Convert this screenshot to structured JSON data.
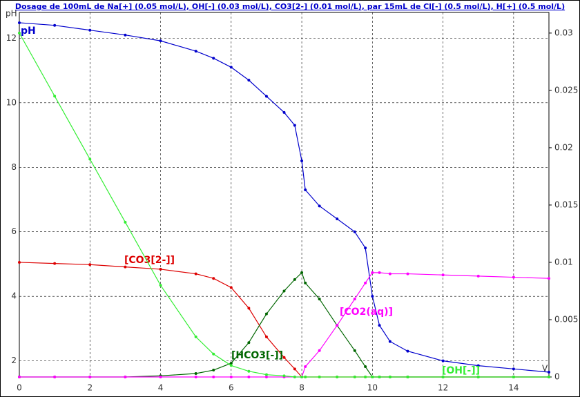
{
  "chart_data": {
    "type": "line",
    "title": "Dosage de 100mL de Na[+] (0.05 mol/L), OH[-] (0.03 mol/L), CO3[2-] (0.01 mol/L),  par 15mL  de Cl[-] (0.5 mol/L), H[+] (0.5 mol/L)",
    "y_label": "pH",
    "x_label": "V",
    "x": [
      0,
      1,
      2,
      3,
      4,
      5,
      5.5,
      6,
      6.5,
      7,
      7.5,
      7.8,
      8,
      8.1,
      8.5,
      9,
      9.5,
      9.8,
      10,
      10.2,
      10.5,
      11,
      12,
      13,
      14,
      15
    ],
    "series": [
      {
        "name": "pH",
        "color": "#0000cc",
        "values": [
          12.48,
          12.4,
          12.25,
          12.1,
          11.92,
          11.6,
          11.38,
          11.1,
          10.7,
          10.2,
          9.7,
          9.3,
          8.2,
          7.3,
          6.8,
          6.4,
          6.0,
          5.5,
          4.0,
          3.1,
          2.6,
          2.3,
          2.0,
          1.85,
          1.75,
          1.65
        ]
      },
      {
        "name": "[CO3[2-]]",
        "color": "#dd0000",
        "axis": "y2",
        "values": [
          0.01,
          0.0099,
          0.0098,
          0.0096,
          0.0094,
          0.009,
          0.0086,
          0.0078,
          0.006,
          0.0035,
          0.0017,
          0.0007,
          0,
          0,
          0,
          0,
          0,
          0,
          0,
          0,
          0,
          0,
          0,
          0,
          0,
          0
        ]
      },
      {
        "name": "[HCO3[-]]",
        "color": "#006600",
        "axis": "y2",
        "values": [
          0,
          0,
          0,
          0,
          0.0001,
          0.0003,
          0.0006,
          0.0012,
          0.003,
          0.0055,
          0.0075,
          0.0085,
          0.0091,
          0.0082,
          0.0068,
          0.0045,
          0.0023,
          0.0009,
          0,
          0,
          0,
          0,
          0,
          0,
          0,
          0
        ]
      },
      {
        "name": "[CO2(aq)]",
        "color": "#ff00ff",
        "axis": "y2",
        "values": [
          0,
          0,
          0,
          0,
          0,
          0,
          0,
          0,
          0,
          0,
          0,
          0,
          0,
          0.0009,
          0.0023,
          0.0045,
          0.0068,
          0.0082,
          0.0091,
          0.0091,
          0.009,
          0.009,
          0.0089,
          0.0088,
          0.0087,
          0.0086
        ]
      },
      {
        "name": "[OH[-]]",
        "color": "#33ee33",
        "axis": "y2",
        "values": [
          0.03,
          0.0245,
          0.019,
          0.0135,
          0.008,
          0.0035,
          0.002,
          0.001,
          0.0005,
          0.0002,
          0.0001,
          0,
          0,
          0,
          0,
          0,
          0,
          0,
          0,
          0,
          0,
          0,
          0,
          0,
          0,
          0
        ]
      }
    ],
    "xlim": [
      0,
      15
    ],
    "xticks": [
      0,
      2,
      4,
      6,
      8,
      10,
      12,
      14
    ],
    "ylim": [
      1.5,
      12.8
    ],
    "yticks": [
      2,
      4,
      6,
      8,
      10,
      12
    ],
    "y2lim": [
      0,
      0.0318
    ],
    "y2ticks": [
      0,
      0.005,
      0.01,
      0.015,
      0.02,
      0.025,
      0.03
    ],
    "grid": true
  }
}
